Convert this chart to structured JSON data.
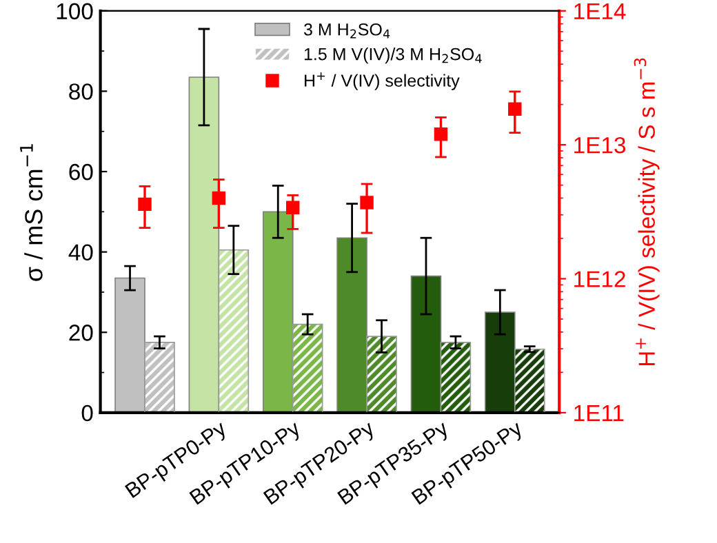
{
  "chart_data": {
    "type": "bar",
    "categories": [
      null,
      "BP-pTP0-Py",
      "BP-pTP10-Py",
      "BP-pTP20-Py",
      "BP-pTP35-Py",
      "BP-pTP50-Py"
    ],
    "ylabel": "σ / mS cm$^{−1}$",
    "y2label": "H$^{+}$ / V(IV) selectivity / S s m$^{−3}$",
    "series": [
      {
        "name": "3 M H$_{2}$SO$_{4}$",
        "colors": [
          "#c0c0c0",
          "#c5e3a5",
          "#7ab648",
          "#4e8a2a",
          "#245c0e",
          "#163d0a"
        ],
        "values": [
          33.5,
          83.5,
          50,
          43.5,
          34,
          25
        ],
        "errors": [
          3,
          12,
          6.5,
          8.5,
          9.5,
          5.5
        ]
      },
      {
        "name": "1.5 M V(IV)/3 M H$_{2}$SO$_{4}$",
        "colors": [
          "#c0c0c0",
          "#c5e3a5",
          "#7ab648",
          "#4e8a2a",
          "#245c0e",
          "#163d0a"
        ],
        "values": [
          17.5,
          40.5,
          22,
          19,
          17.5,
          15.8
        ],
        "errors": [
          1.5,
          6,
          2.5,
          4,
          1.5,
          0.7
        ]
      },
      {
        "name": "H$^{+}$ / V(IV) selectivity",
        "type": "scatter",
        "axis": "y2",
        "color": "#ff0000",
        "values": [
          3600000000000.0,
          4000000000000.0,
          3400000000000.0,
          3700000000000.0,
          12000000000000.0,
          18500000000000.0
        ],
        "errors": [
          [
            2400000000000.0,
            4900000000000.0
          ],
          [
            2400000000000.0,
            5500000000000.0
          ],
          [
            2350000000000.0,
            4200000000000.0
          ],
          [
            2200000000000.0,
            5100000000000.0
          ],
          [
            8100000000000.0,
            16000000000000.0
          ],
          [
            12300000000000.0,
            25000000000000.0
          ]
        ]
      }
    ],
    "ylim": [
      0,
      100
    ],
    "yticks": [
      0,
      20,
      40,
      60,
      80,
      100
    ],
    "log": "y2",
    "y2lim": [
      100000000000.0,
      100000000000000.0
    ],
    "y2ticks": [
      {
        "value": 100000000000.0,
        "label": "1E11"
      },
      {
        "value": 1000000000000.0,
        "label": "1E12"
      },
      {
        "value": 10000000000000.0,
        "label": "1E13"
      },
      {
        "value": 100000000000000.0,
        "label": "1E14"
      }
    ],
    "marker": "square",
    "legend": "top right",
    "grid": false
  }
}
